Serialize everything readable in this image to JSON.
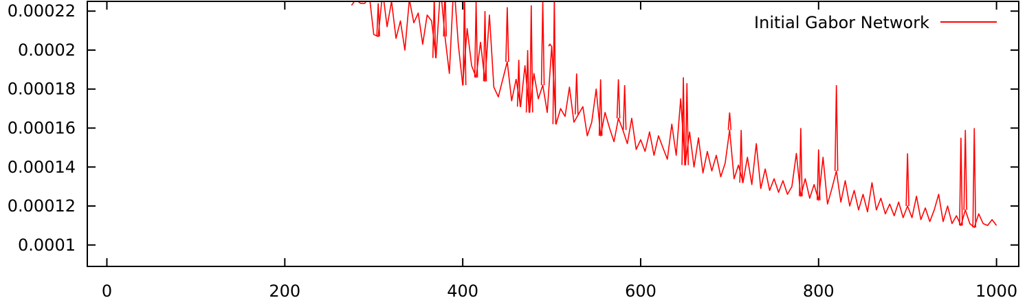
{
  "chart_data": {
    "type": "line",
    "title": "",
    "xlabel": "",
    "ylabel": "",
    "xlim": [
      -22,
      1025
    ],
    "ylim": [
      8.9e-05,
      0.000225
    ],
    "x_ticks": [
      0,
      200,
      400,
      600,
      800,
      1000
    ],
    "x_tick_labels": [
      "0",
      "200",
      "400",
      "600",
      "800",
      "1000"
    ],
    "y_ticks": [
      0.0001,
      0.00012,
      0.00014,
      0.00016,
      0.00018,
      0.0002,
      0.00022
    ],
    "y_tick_labels": [
      "0.0001",
      "0.00012",
      "0.00014",
      "0.00016",
      "0.00018",
      "0.0002",
      "0.00022"
    ],
    "grid": false,
    "legend_position": "top-right",
    "series": [
      {
        "name": "Initial Gabor Network",
        "color": "#ff0000",
        "x": [
          275,
          280,
          285,
          290,
          295,
          300,
          305,
          310,
          315,
          320,
          325,
          330,
          335,
          340,
          345,
          350,
          355,
          360,
          365,
          370,
          375,
          380,
          385,
          390,
          395,
          400,
          405,
          410,
          415,
          420,
          425,
          430,
          435,
          440,
          445,
          450,
          455,
          460,
          465,
          470,
          475,
          480,
          485,
          490,
          495,
          500,
          505,
          510,
          515,
          520,
          525,
          530,
          535,
          540,
          545,
          550,
          555,
          560,
          565,
          570,
          575,
          580,
          585,
          590,
          595,
          600,
          605,
          610,
          615,
          620,
          625,
          630,
          635,
          640,
          645,
          650,
          655,
          660,
          665,
          670,
          675,
          680,
          685,
          690,
          695,
          700,
          705,
          710,
          715,
          720,
          725,
          730,
          735,
          740,
          745,
          750,
          755,
          760,
          765,
          770,
          775,
          780,
          785,
          790,
          795,
          800,
          805,
          810,
          815,
          820,
          825,
          830,
          835,
          840,
          845,
          850,
          855,
          860,
          865,
          870,
          875,
          880,
          885,
          890,
          895,
          900,
          905,
          910,
          915,
          920,
          925,
          930,
          935,
          940,
          945,
          950,
          955,
          960,
          965,
          970,
          975,
          980,
          985,
          990,
          995,
          1000
        ],
        "y": [
          0.000223,
          0.000226,
          0.000224,
          0.000224,
          0.000228,
          0.000208,
          0.000207,
          0.00023,
          0.000212,
          0.000225,
          0.000206,
          0.000215,
          0.0002,
          0.000226,
          0.000214,
          0.000219,
          0.000203,
          0.000218,
          0.000215,
          0.000196,
          0.000232,
          0.000207,
          0.000188,
          0.000235,
          0.000203,
          0.000182,
          0.000211,
          0.000192,
          0.000186,
          0.000204,
          0.000184,
          0.000218,
          0.000181,
          0.000176,
          0.000185,
          0.000194,
          0.000174,
          0.000185,
          0.000171,
          0.000192,
          0.000168,
          0.000188,
          0.000175,
          0.000182,
          0.000168,
          0.000202,
          0.000162,
          0.00017,
          0.000166,
          0.000181,
          0.000163,
          0.000167,
          0.000171,
          0.000156,
          0.000163,
          0.00018,
          0.000156,
          0.000168,
          0.00016,
          0.000153,
          0.000165,
          0.000159,
          0.000152,
          0.000165,
          0.000149,
          0.000154,
          0.000148,
          0.000158,
          0.000146,
          0.000156,
          0.00015,
          0.000144,
          0.000162,
          0.000146,
          0.000175,
          0.000141,
          0.000158,
          0.00014,
          0.000155,
          0.000137,
          0.000148,
          0.000138,
          0.000146,
          0.000135,
          0.000142,
          0.000159,
          0.000134,
          0.000141,
          0.000132,
          0.000145,
          0.000131,
          0.000152,
          0.000129,
          0.000139,
          0.000128,
          0.000134,
          0.000127,
          0.000133,
          0.000126,
          0.00013,
          0.000147,
          0.000125,
          0.000134,
          0.000124,
          0.000131,
          0.000123,
          0.000145,
          0.000121,
          0.000129,
          0.000138,
          0.000122,
          0.000133,
          0.00012,
          0.000128,
          0.000118,
          0.000126,
          0.000117,
          0.000132,
          0.000118,
          0.000124,
          0.000116,
          0.000121,
          0.000115,
          0.000122,
          0.000114,
          0.00012,
          0.000114,
          0.000125,
          0.000113,
          0.000119,
          0.000112,
          0.000118,
          0.000126,
          0.000112,
          0.00012,
          0.000111,
          0.000115,
          0.00011,
          0.000118,
          0.000111,
          0.000109,
          0.000116,
          0.000111,
          0.00011,
          0.000113,
          0.00011
        ],
        "spikes": [
          [
            305,
            0.000224
          ],
          [
            320,
            0.000228
          ],
          [
            342,
            0.000226
          ],
          [
            368,
            0.000227
          ],
          [
            380,
            0.000232
          ],
          [
            390,
            0.000235
          ],
          [
            402,
            0.000229
          ],
          [
            415,
            0.000225
          ],
          [
            425,
            0.00022
          ],
          [
            450,
            0.000222
          ],
          [
            463,
            0.000195
          ],
          [
            473,
            0.0002
          ],
          [
            477,
            0.000223
          ],
          [
            490,
            0.000225
          ],
          [
            498,
            0.000203
          ],
          [
            503,
            0.000227
          ],
          [
            528,
            0.000188
          ],
          [
            555,
            0.000185
          ],
          [
            575,
            0.000185
          ],
          [
            582,
            0.000182
          ],
          [
            648,
            0.000186
          ],
          [
            652,
            0.000183
          ],
          [
            700,
            0.000168
          ],
          [
            713,
            0.000159
          ],
          [
            780,
            0.00016
          ],
          [
            800,
            0.000149
          ],
          [
            820,
            0.000182
          ],
          [
            900,
            0.000147
          ],
          [
            960,
            0.000155
          ],
          [
            965,
            0.000159
          ],
          [
            975,
            0.00016
          ]
        ]
      }
    ]
  }
}
